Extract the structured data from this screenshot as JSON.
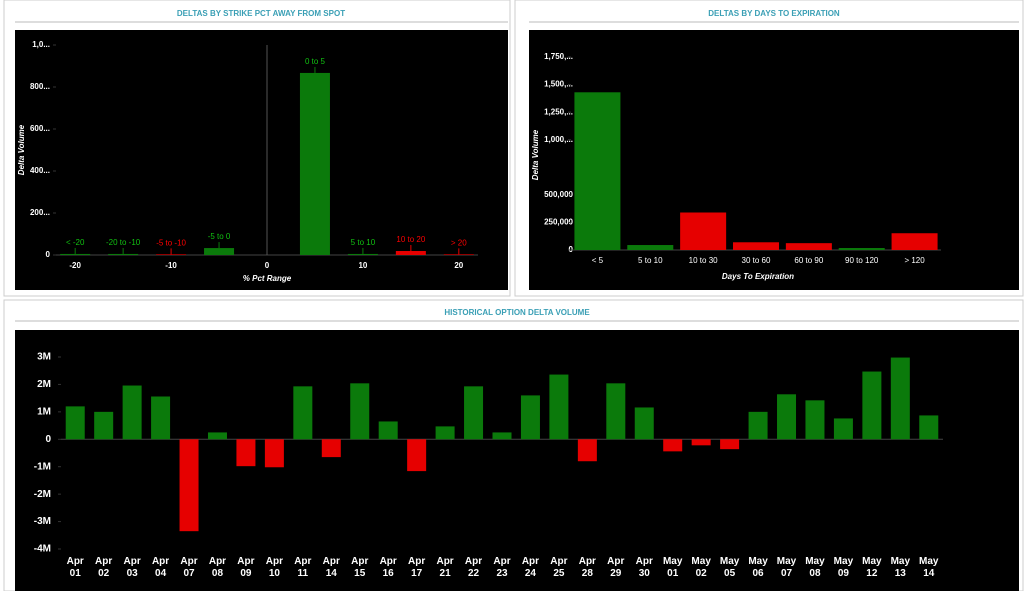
{
  "chart_data": [
    {
      "type": "bar",
      "title": "DELTAS BY STRIKE PCT AWAY FROM SPOT",
      "x_label": "% Pct Range",
      "y_label": "Delta Volume",
      "categories": [
        "< -20",
        "-20 to -10",
        "-5 to -10",
        "-5 to 0",
        "0 to 5",
        "5 to 10",
        "10 to 20",
        "> 20"
      ],
      "x": [
        -20,
        -15,
        -10,
        -5,
        5,
        10,
        15,
        20
      ],
      "values": [
        5000,
        5000,
        3000,
        33000,
        867000,
        5000,
        19000,
        3000
      ],
      "colors": [
        "#0b7a0b",
        "#0b7a0b",
        "#e60000",
        "#0b7a0b",
        "#0b7a0b",
        "#0b7a0b",
        "#e60000",
        "#e60000"
      ],
      "xlim": [
        -22,
        22
      ],
      "xticks": [
        -20,
        -10,
        0,
        10,
        20
      ],
      "ylim": [
        0,
        1000000
      ],
      "yticks": [
        0,
        {
          "value": 200000,
          "label": "200..."
        },
        {
          "value": 400000,
          "label": "400..."
        },
        {
          "value": 600000,
          "label": "600..."
        },
        {
          "value": 800000,
          "label": "800..."
        },
        {
          "value": 1000000,
          "label": "1,0..."
        }
      ]
    },
    {
      "type": "bar",
      "title": "DELTAS BY DAYS TO EXPIRATION",
      "x_label": "Days To Expiration",
      "y_label": "Delta Volume",
      "categories": [
        "< 5",
        "5 to 10",
        "10 to 30",
        "30 to 60",
        "60 to 90",
        "90 to 120",
        "> 120"
      ],
      "values": [
        1430000,
        45000,
        340000,
        70000,
        62000,
        18000,
        152000
      ],
      "colors": [
        "#0b7a0b",
        "#0b7a0b",
        "#e60000",
        "#e60000",
        "#e60000",
        "#0b7a0b",
        "#e60000"
      ],
      "ylim": [
        0,
        1750000
      ],
      "yticks": [
        0,
        {
          "value": 250000,
          "label": "250,000"
        },
        {
          "value": 500000,
          "label": "500,000"
        },
        {
          "value": 1000000,
          "label": "1,000,..."
        },
        {
          "value": 1250000,
          "label": "1,250,..."
        },
        {
          "value": 1500000,
          "label": "1,500,..."
        },
        {
          "value": 1750000,
          "label": "1,750,..."
        }
      ]
    },
    {
      "type": "bar",
      "title": "HISTORICAL OPTION DELTA VOLUME",
      "categories": [
        "Apr 01",
        "Apr 02",
        "Apr 03",
        "Apr 04",
        "Apr 07",
        "Apr 08",
        "Apr 09",
        "Apr 10",
        "Apr 11",
        "Apr 14",
        "Apr 15",
        "Apr 16",
        "Apr 17",
        "Apr 21",
        "Apr 22",
        "Apr 23",
        "Apr 24",
        "Apr 25",
        "Apr 28",
        "Apr 29",
        "Apr 30",
        "May 01",
        "May 02",
        "May 05",
        "May 06",
        "May 07",
        "May 08",
        "May 09",
        "May 12",
        "May 13",
        "May 14"
      ],
      "values": [
        1200000,
        1000000,
        1960000,
        1560000,
        -3350000,
        250000,
        -980000,
        -1020000,
        1930000,
        -650000,
        2040000,
        650000,
        -1160000,
        470000,
        1930000,
        250000,
        1600000,
        2360000,
        -800000,
        2040000,
        1160000,
        -440000,
        -220000,
        -360000,
        1000000,
        1640000,
        1420000,
        760000,
        2470000,
        2980000,
        870000
      ],
      "positive_color": "#0b7a0b",
      "negative_color": "#e60000",
      "ylim": [
        -4000000,
        3000000
      ],
      "yticks": [
        {
          "value": -4000000,
          "label": "-4M"
        },
        {
          "value": -3000000,
          "label": "-3M"
        },
        {
          "value": -2000000,
          "label": "-2M"
        },
        {
          "value": -1000000,
          "label": "-1M"
        },
        0,
        {
          "value": 1000000,
          "label": "1M"
        },
        {
          "value": 2000000,
          "label": "2M"
        },
        {
          "value": 3000000,
          "label": "3M"
        }
      ]
    }
  ]
}
